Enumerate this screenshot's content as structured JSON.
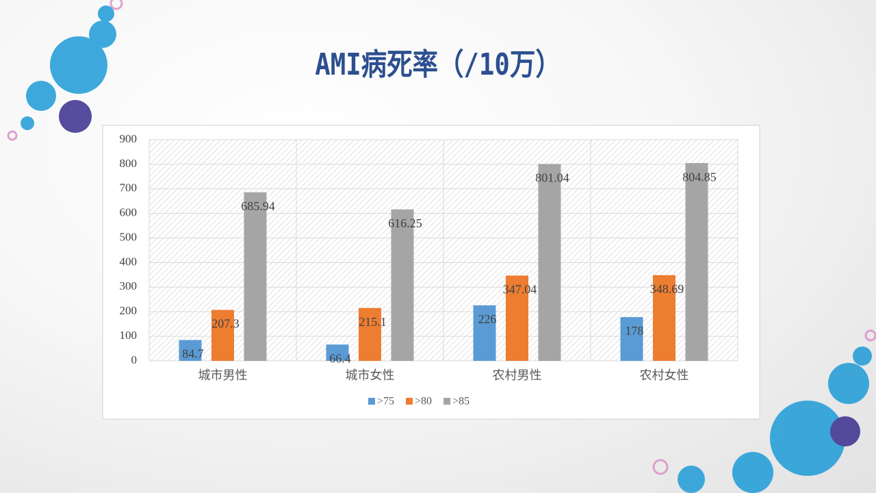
{
  "chart_data": {
    "type": "bar",
    "title": "AMI病死率（/10万）",
    "categories": [
      "城市男性",
      "城市女性",
      "农村男性",
      "农村女性"
    ],
    "series": [
      {
        "name": ">75",
        "color": "#5b9bd5",
        "values": [
          84.7,
          66.4,
          226,
          178
        ]
      },
      {
        "name": ">80",
        "color": "#ed7d31",
        "values": [
          207.3,
          215.1,
          347.04,
          348.69
        ]
      },
      {
        "name": ">85",
        "color": "#a5a5a5",
        "values": [
          685.94,
          616.25,
          801.04,
          804.85
        ]
      }
    ],
    "ylim": [
      0,
      900
    ],
    "yticks": [
      0,
      100,
      200,
      300,
      400,
      500,
      600,
      700,
      800,
      900
    ],
    "grid": true,
    "legend": "bottom"
  }
}
